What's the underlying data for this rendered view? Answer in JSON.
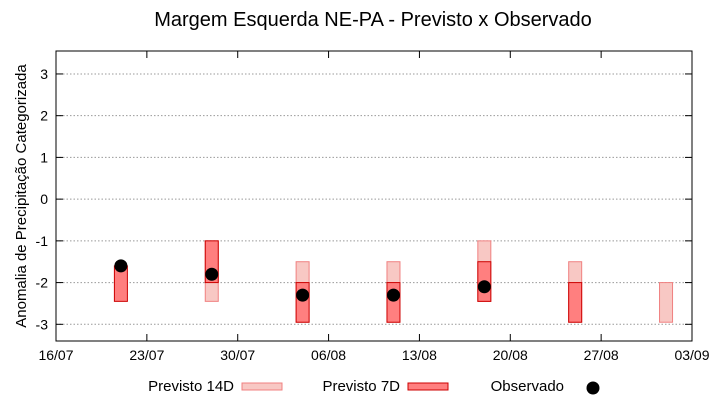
{
  "chart_data": {
    "type": "range-bar",
    "title": "Margem Esquerda NE-PA - Previsto x Observado",
    "xlabel": "",
    "ylabel": "Anomalia de Precipitação Categorizada",
    "x_ticks": [
      "16/07",
      "23/07",
      "30/07",
      "06/08",
      "13/08",
      "20/08",
      "27/08",
      "03/09"
    ],
    "xlim": [
      "16/07",
      "03/09"
    ],
    "ylim": [
      -3.4,
      3.55
    ],
    "y_ticks": [
      3,
      2,
      1,
      0,
      -1,
      -2,
      -3
    ],
    "grid": "horizontal-dotted",
    "legend_position": "bottom",
    "series": [
      {
        "name": "Previsto 14D",
        "kind": "range",
        "fill": "#f8c8c4",
        "stroke": "#f08080",
        "points": [
          {
            "x": "28/07",
            "low": -2.45,
            "high": -1.0
          },
          {
            "x": "04/08",
            "low": -2.95,
            "high": -1.5
          },
          {
            "x": "11/08",
            "low": -2.95,
            "high": -1.5
          },
          {
            "x": "18/08",
            "low": -2.45,
            "high": -1.0
          },
          {
            "x": "25/08",
            "low": -2.95,
            "high": -1.5
          },
          {
            "x": "01/09",
            "low": -2.95,
            "high": -2.0
          }
        ]
      },
      {
        "name": "Previsto 7D",
        "kind": "range",
        "fill": "#ff7f7f",
        "stroke": "#cc0000",
        "points": [
          {
            "x": "21/07",
            "low": -2.45,
            "high": -1.6
          },
          {
            "x": "28/07",
            "low": -2.0,
            "high": -1.0
          },
          {
            "x": "04/08",
            "low": -2.95,
            "high": -2.0
          },
          {
            "x": "11/08",
            "low": -2.95,
            "high": -2.0
          },
          {
            "x": "18/08",
            "low": -2.45,
            "high": -1.5
          },
          {
            "x": "25/08",
            "low": -2.95,
            "high": -2.0
          }
        ]
      },
      {
        "name": "Observado",
        "kind": "point",
        "color": "#000000",
        "points": [
          {
            "x": "21/07",
            "y": -1.6
          },
          {
            "x": "28/07",
            "y": -1.8
          },
          {
            "x": "04/08",
            "y": -2.3
          },
          {
            "x": "11/08",
            "y": -2.3
          },
          {
            "x": "18/08",
            "y": -2.1
          }
        ]
      }
    ]
  }
}
